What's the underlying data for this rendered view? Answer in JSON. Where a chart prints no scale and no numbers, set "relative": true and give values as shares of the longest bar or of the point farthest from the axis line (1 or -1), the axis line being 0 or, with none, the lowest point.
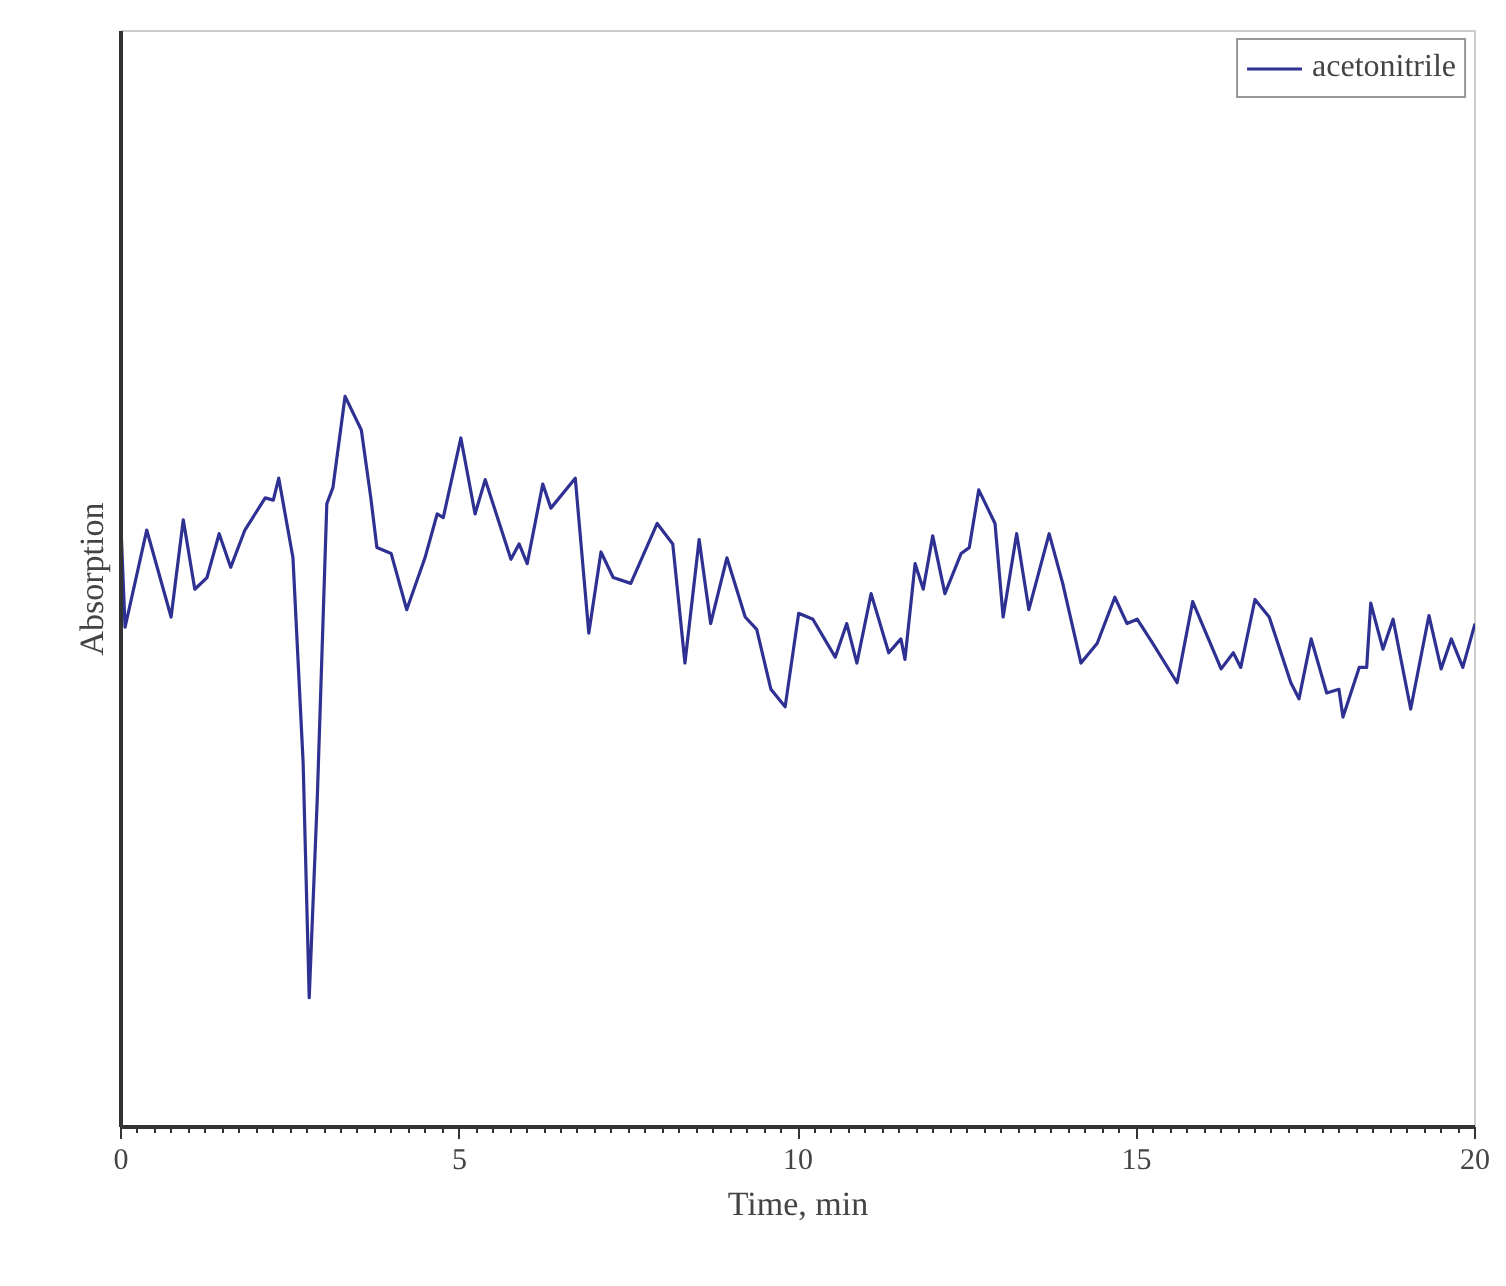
{
  "chart_data": {
    "type": "line",
    "xlabel": "Time, min",
    "ylabel": "Absorption",
    "relative": true,
    "xlim": [
      0,
      20
    ],
    "xticks": [
      0,
      5,
      10,
      15,
      20
    ],
    "grid": false,
    "legend": "top right",
    "marker": "none",
    "line_style": "solid",
    "x": [
      0.0,
      0.06,
      0.38,
      0.74,
      0.92,
      1.09,
      1.27,
      1.45,
      1.62,
      1.83,
      2.13,
      2.25,
      2.33,
      2.54,
      2.69,
      2.78,
      2.9,
      3.04,
      3.13,
      3.31,
      3.55,
      3.69,
      3.78,
      3.99,
      4.22,
      4.49,
      4.67,
      4.76,
      5.02,
      5.23,
      5.38,
      5.76,
      5.88,
      6.0,
      6.23,
      6.35,
      6.71,
      6.91,
      7.09,
      7.27,
      7.53,
      7.92,
      8.15,
      8.33,
      8.54,
      8.71,
      8.95,
      9.22,
      9.39,
      9.6,
      9.81,
      10.01,
      10.22,
      10.55,
      10.72,
      10.87,
      11.08,
      11.34,
      11.52,
      11.58,
      11.73,
      11.85,
      11.99,
      12.17,
      12.41,
      12.53,
      12.67,
      12.91,
      13.03,
      13.23,
      13.41,
      13.71,
      13.91,
      14.18,
      14.42,
      14.68,
      14.86,
      15.01,
      15.24,
      15.6,
      15.83,
      16.25,
      16.43,
      16.54,
      16.75,
      16.96,
      17.28,
      17.4,
      17.58,
      17.81,
      17.99,
      18.05,
      18.29,
      18.4,
      18.46,
      18.64,
      18.79,
      19.05,
      19.32,
      19.5,
      19.65,
      19.82,
      20.0
    ],
    "series": [
      {
        "name": "acetonitrile",
        "color": "#2e3192",
        "values": [
          0.82,
          0.684,
          0.817,
          0.698,
          0.831,
          0.736,
          0.752,
          0.812,
          0.766,
          0.817,
          0.861,
          0.858,
          0.888,
          0.779,
          0.499,
          0.177,
          0.452,
          0.853,
          0.875,
          1.0,
          0.954,
          0.861,
          0.793,
          0.785,
          0.708,
          0.779,
          0.839,
          0.834,
          0.943,
          0.839,
          0.886,
          0.777,
          0.798,
          0.771,
          0.88,
          0.847,
          0.888,
          0.676,
          0.787,
          0.752,
          0.744,
          0.826,
          0.798,
          0.635,
          0.804,
          0.689,
          0.779,
          0.698,
          0.681,
          0.599,
          0.575,
          0.703,
          0.695,
          0.643,
          0.689,
          0.635,
          0.73,
          0.649,
          0.668,
          0.64,
          0.771,
          0.736,
          0.809,
          0.73,
          0.785,
          0.793,
          0.872,
          0.826,
          0.698,
          0.812,
          0.708,
          0.812,
          0.744,
          0.635,
          0.662,
          0.725,
          0.689,
          0.695,
          0.662,
          0.608,
          0.719,
          0.627,
          0.649,
          0.629,
          0.722,
          0.698,
          0.608,
          0.586,
          0.668,
          0.594,
          0.599,
          0.561,
          0.629,
          0.629,
          0.717,
          0.654,
          0.695,
          0.572,
          0.7,
          0.627,
          0.668,
          0.629,
          0.689
        ]
      }
    ]
  }
}
